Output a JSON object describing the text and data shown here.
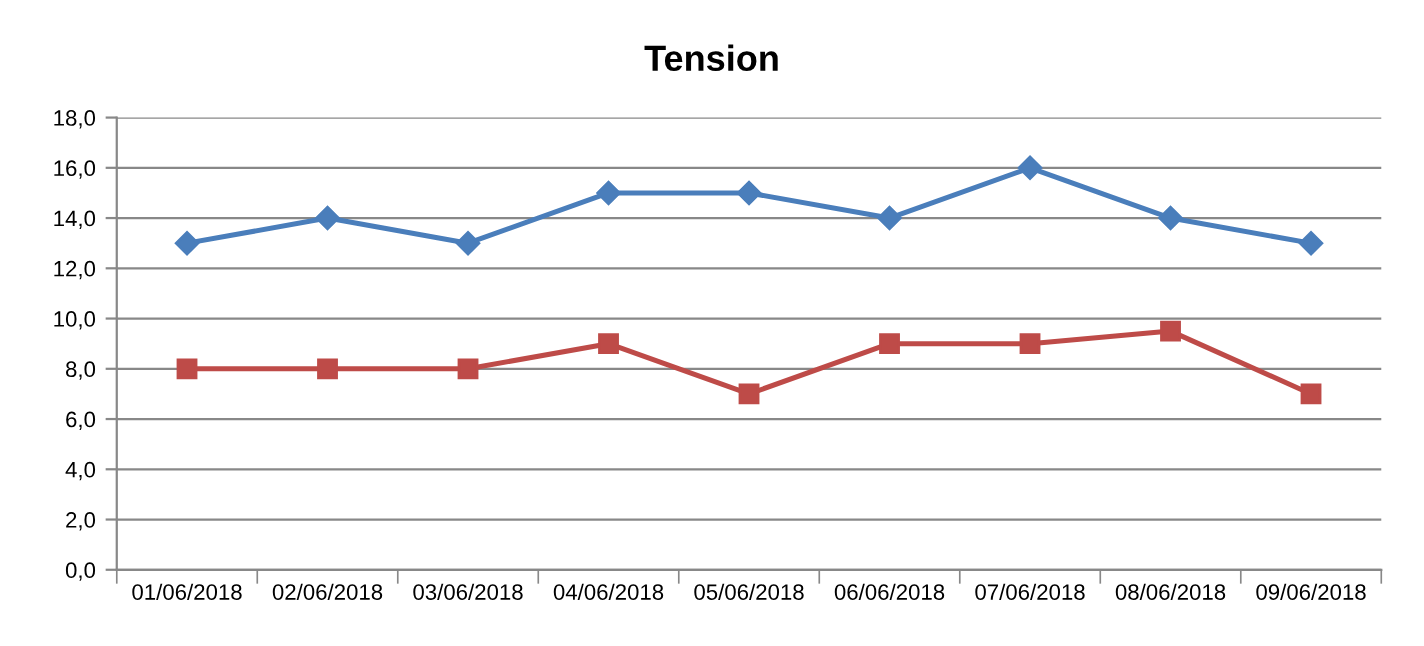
{
  "chart_data": {
    "type": "line",
    "title": "Tension",
    "categories": [
      "01/06/2018",
      "02/06/2018",
      "03/06/2018",
      "04/06/2018",
      "05/06/2018",
      "06/06/2018",
      "07/06/2018",
      "08/06/2018",
      "09/06/2018"
    ],
    "series": [
      {
        "color": "#4a7ebb",
        "marker": "diamond",
        "values": [
          13,
          14,
          13,
          15,
          15,
          14,
          16,
          14,
          13
        ]
      },
      {
        "color": "#be4b48",
        "marker": "square",
        "values": [
          8,
          8,
          8,
          9,
          7,
          9,
          9,
          9.5,
          7
        ]
      }
    ],
    "ylim": [
      0,
      18
    ],
    "yticks": [
      {
        "value": 0,
        "label": "0,0"
      },
      {
        "value": 2,
        "label": "2,0"
      },
      {
        "value": 4,
        "label": "4,0"
      },
      {
        "value": 6,
        "label": "6,0"
      },
      {
        "value": 8,
        "label": "8,0"
      },
      {
        "value": 10,
        "label": "10,0"
      },
      {
        "value": 12,
        "label": "12,0"
      },
      {
        "value": 14,
        "label": "14,0"
      },
      {
        "value": 16,
        "label": "16,0"
      },
      {
        "value": 18,
        "label": "18,0"
      }
    ],
    "grid": "y",
    "line_style": "solid"
  }
}
